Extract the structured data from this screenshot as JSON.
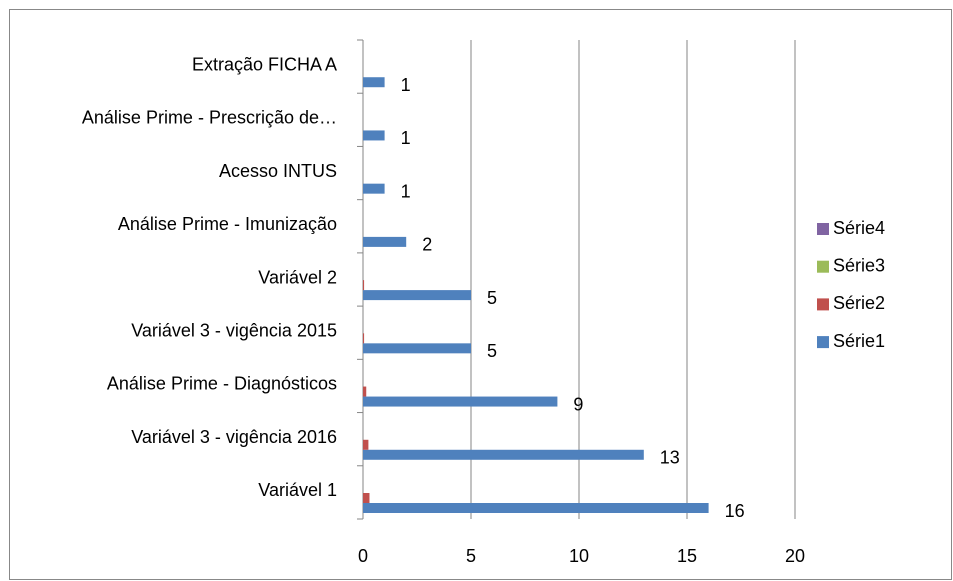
{
  "chart_data": {
    "type": "hbar",
    "categories": [
      "Variável 1",
      "Variável 3 - vigência 2016",
      "Análise Prime - Diagnósticos",
      "Variável 3 - vigência 2015",
      "Variável 2",
      "Análise Prime - Imunização",
      "Acesso INTUS",
      "Análise Prime - Prescrição de…",
      "Extração FICHA A"
    ],
    "series": [
      {
        "name": "Série1",
        "color": "#4f81bd",
        "data_labels": true,
        "values": [
          16,
          13,
          9,
          5,
          5,
          2,
          1,
          1,
          1
        ]
      },
      {
        "name": "Série2",
        "color": "#c0504d",
        "values": [
          0.3,
          0.25,
          0.15,
          0.05,
          0.05,
          0,
          0,
          0,
          0
        ]
      },
      {
        "name": "Série3",
        "color": "#9bbb59",
        "values": [
          0,
          0,
          0,
          0,
          0,
          0,
          0,
          0,
          0
        ]
      },
      {
        "name": "Série4",
        "color": "#8064a2",
        "values": [
          0,
          0,
          0,
          0,
          0,
          0,
          0,
          0,
          0
        ]
      }
    ],
    "xlim": [
      0,
      20
    ],
    "xticks": [
      0,
      5,
      10,
      15,
      20
    ],
    "grid": true,
    "legend": "right"
  }
}
